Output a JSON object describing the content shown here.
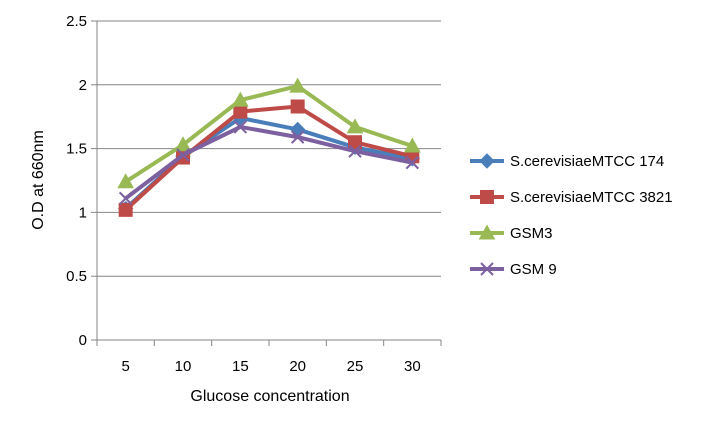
{
  "chart_data": {
    "type": "line",
    "title": "",
    "xlabel": "Glucose concentration",
    "ylabel": "O.D at 660nm",
    "categories": [
      "5",
      "10",
      "15",
      "20",
      "25",
      "30"
    ],
    "ylim": [
      0,
      2.5
    ],
    "yticks": [
      "0",
      "0.5",
      "1",
      "1.5",
      "2",
      "2.5"
    ],
    "grid": true,
    "legend_position": "right",
    "series": [
      {
        "name": "S.cerevisiaeMTCC 174",
        "values": [
          1.03,
          1.44,
          1.74,
          1.65,
          1.51,
          1.42
        ],
        "color": "#4a7ebb",
        "marker": "diamond"
      },
      {
        "name": "S.cerevisiaeMTCC 3821",
        "values": [
          1.02,
          1.43,
          1.79,
          1.83,
          1.55,
          1.44
        ],
        "color": "#be4b48",
        "marker": "square"
      },
      {
        "name": "GSM3",
        "values": [
          1.24,
          1.53,
          1.88,
          1.99,
          1.67,
          1.52
        ],
        "color": "#98b954",
        "marker": "triangle"
      },
      {
        "name": "GSM 9",
        "values": [
          1.11,
          1.45,
          1.67,
          1.59,
          1.48,
          1.39
        ],
        "color": "#7d60a0",
        "marker": "x"
      }
    ]
  }
}
